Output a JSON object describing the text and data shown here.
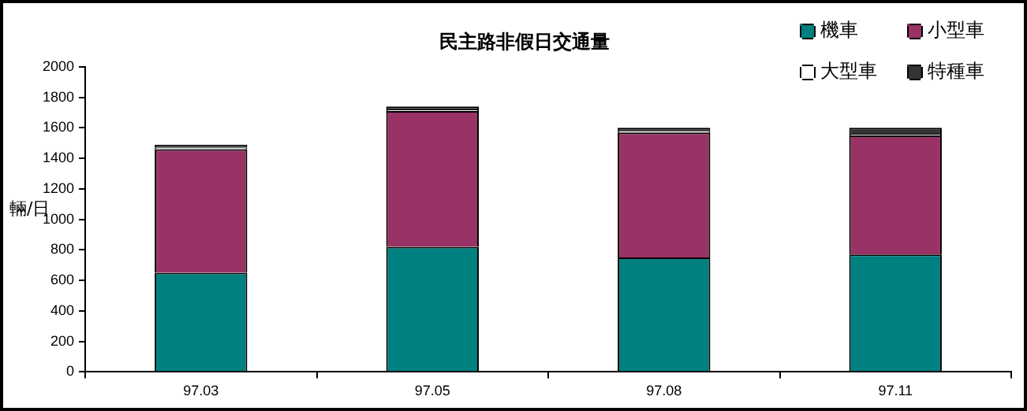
{
  "chart_data": {
    "type": "bar",
    "title": "民主路非假日交通量",
    "ylabel": "輛/日",
    "categories": [
      "97.03",
      "97.05",
      "97.08",
      "97.11"
    ],
    "stacked": true,
    "legend": "top right",
    "grid": false,
    "ylim": [
      0,
      2000
    ],
    "yticks": [
      0,
      200,
      400,
      600,
      800,
      1000,
      1200,
      1400,
      1600,
      1800,
      2000
    ],
    "series": [
      {
        "name": "機車",
        "color": "#008080",
        "values": [
          650,
          820,
          750,
          770
        ]
      },
      {
        "name": "小型車",
        "color": "#993366",
        "values": [
          810,
          890,
          820,
          780
        ]
      },
      {
        "name": "大型車",
        "color": "#ffffff",
        "values": [
          10,
          10,
          10,
          10
        ]
      },
      {
        "name": "特種車",
        "color": "#333333",
        "values": [
          20,
          20,
          20,
          40
        ]
      }
    ]
  }
}
